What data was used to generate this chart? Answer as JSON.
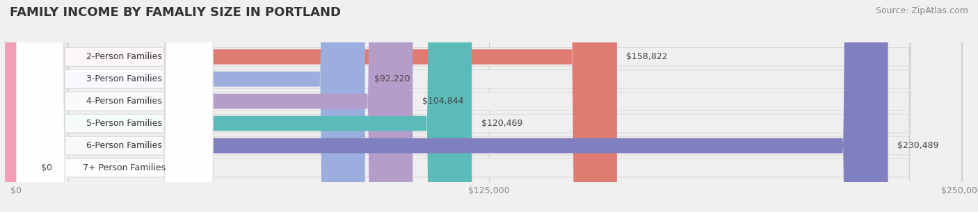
{
  "title": "FAMILY INCOME BY FAMALIY SIZE IN PORTLAND",
  "source": "Source: ZipAtlas.com",
  "categories": [
    "2-Person Families",
    "3-Person Families",
    "4-Person Families",
    "5-Person Families",
    "6-Person Families",
    "7+ Person Families"
  ],
  "values": [
    158822,
    92220,
    104844,
    120469,
    230489,
    0
  ],
  "bar_colors": [
    "#E07B72",
    "#9BAEDD",
    "#B49DC8",
    "#5BBBB8",
    "#8080C0",
    "#F2A0B5"
  ],
  "bar_labels": [
    "$158,822",
    "$92,220",
    "$104,844",
    "$120,469",
    "$230,489",
    "$0"
  ],
  "xlim": [
    0,
    250000
  ],
  "xticks": [
    0,
    125000,
    250000
  ],
  "xticklabels": [
    "$0",
    "$125,000",
    "$250,000"
  ],
  "title_fontsize": 13,
  "source_fontsize": 9,
  "label_fontsize": 9,
  "bar_label_fontsize": 9,
  "tick_fontsize": 9,
  "bar_height": 0.68
}
